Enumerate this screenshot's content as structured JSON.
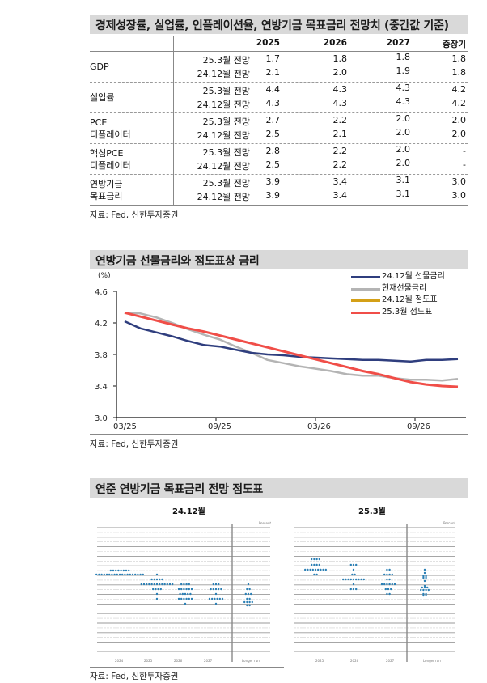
{
  "table_section": {
    "title": "경제성장률, 실업률, 인플레이션율, 연방기금 목표금리 전망치 (중간값 기준)",
    "columns": [
      "2025",
      "2026",
      "2027",
      "중장기"
    ],
    "groups": [
      {
        "name_line1": "GDP",
        "name_line2": "",
        "rows": [
          {
            "label": "25.3월 전망",
            "values": [
              "1.7",
              "1.8",
              "1.8",
              "1.8"
            ]
          },
          {
            "label": "24.12월 전망",
            "values": [
              "2.1",
              "2.0",
              "1.9",
              "1.8"
            ]
          }
        ]
      },
      {
        "name_line1": "실업률",
        "name_line2": "",
        "rows": [
          {
            "label": "25.3월 전망",
            "values": [
              "4.4",
              "4.3",
              "4.3",
              "4.2"
            ]
          },
          {
            "label": "24.12월 전망",
            "values": [
              "4.3",
              "4.3",
              "4.3",
              "4.2"
            ]
          }
        ]
      },
      {
        "name_line1": "PCE",
        "name_line2": "디플레이터",
        "rows": [
          {
            "label": "25.3월 전망",
            "values": [
              "2.7",
              "2.2",
              "2.0",
              "2.0"
            ]
          },
          {
            "label": "24.12월 전망",
            "values": [
              "2.5",
              "2.1",
              "2.0",
              "2.0"
            ]
          }
        ]
      },
      {
        "name_line1": "핵심PCE",
        "name_line2": "디플레이터",
        "rows": [
          {
            "label": "25.3월 전망",
            "values": [
              "2.8",
              "2.2",
              "2.0",
              "-"
            ]
          },
          {
            "label": "24.12월 전망",
            "values": [
              "2.5",
              "2.2",
              "2.0",
              "-"
            ]
          }
        ]
      },
      {
        "name_line1": "연방기금",
        "name_line2": "목표금리",
        "rows": [
          {
            "label": "25.3월 전망",
            "values": [
              "3.9",
              "3.4",
              "3.1",
              "3.0"
            ]
          },
          {
            "label": "24.12월 전망",
            "values": [
              "3.9",
              "3.4",
              "3.1",
              "3.0"
            ]
          }
        ]
      }
    ],
    "source": "자료: Fed, 신한투자증권"
  },
  "line_section": {
    "title": "연방기금 선물금리와 점도표상 금리",
    "source": "자료: Fed, 신한투자증권"
  },
  "dot_section": {
    "title": "연준 연방기금 목표금리 전망 점도표",
    "left_title": "24.12월",
    "right_title": "25.3월",
    "source": "자료: Fed, 신한투자증권"
  },
  "chart_data": {
    "type": "line",
    "title": "연방기금 선물금리와 점도표상 금리",
    "ylabel": "(%)",
    "xlabel": "",
    "ylim": [
      3.0,
      4.6
    ],
    "yticks": [
      "4.6",
      "4.2",
      "3.8",
      "3.4",
      "3.0"
    ],
    "x_tick_labels": [
      "03/25",
      "09/25",
      "03/26",
      "09/26"
    ],
    "x": [
      0,
      1,
      2,
      3,
      4,
      5,
      6,
      7,
      8,
      9,
      10,
      11,
      12,
      13,
      14,
      15,
      16,
      17,
      18,
      19,
      20,
      21
    ],
    "legend_position": "upper right",
    "grid": false,
    "series": [
      {
        "name": "24.12월 선물금리",
        "color": "#2f3e7e",
        "values": [
          4.22,
          4.13,
          4.08,
          4.03,
          3.97,
          3.92,
          3.9,
          3.86,
          3.82,
          3.8,
          3.79,
          3.77,
          3.76,
          3.75,
          3.74,
          3.73,
          3.73,
          3.72,
          3.71,
          3.73,
          3.73,
          3.74
        ]
      },
      {
        "name": "현재선물금리",
        "color": "#b4b4b4",
        "values": [
          4.33,
          4.32,
          4.27,
          4.2,
          4.12,
          4.05,
          3.99,
          3.9,
          3.82,
          3.73,
          3.69,
          3.65,
          3.62,
          3.59,
          3.55,
          3.53,
          3.53,
          3.5,
          3.48,
          3.48,
          3.47,
          3.49
        ]
      },
      {
        "name": "24.12월 점도표",
        "color": "#d4a017",
        "values": []
      },
      {
        "name": "25.3월 점도표",
        "color": "#f04e48",
        "values": [
          4.33,
          4.28,
          4.23,
          4.18,
          4.13,
          4.09,
          4.04,
          3.99,
          3.94,
          3.89,
          3.84,
          3.79,
          3.74,
          3.69,
          3.64,
          3.59,
          3.55,
          3.5,
          3.45,
          3.42,
          3.4,
          3.39
        ]
      }
    ]
  },
  "dot_plot_data": {
    "left": {
      "title": "24.12월",
      "x_labels": [
        "2024",
        "2025",
        "2026",
        "2027",
        "Longer run"
      ],
      "unit_label": "Percent"
    },
    "right": {
      "title": "25.3월",
      "x_labels": [
        "2025",
        "2026",
        "2027",
        "Longer run"
      ],
      "unit_label": "Percent"
    }
  }
}
